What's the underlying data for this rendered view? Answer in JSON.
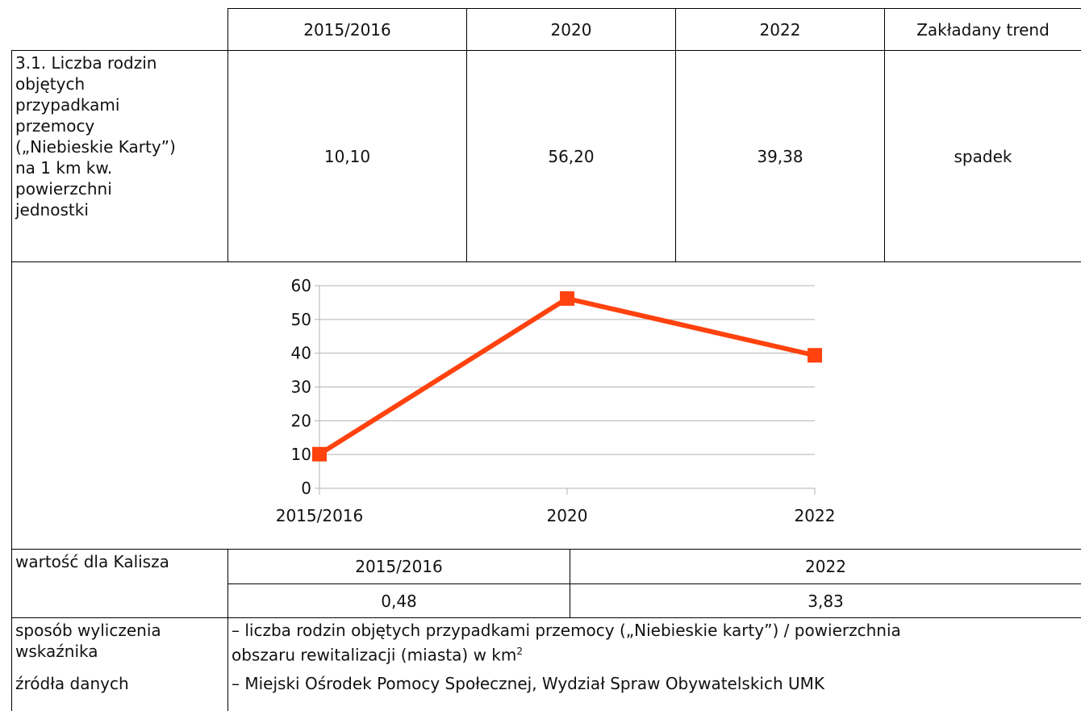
{
  "table": {
    "header": [
      "2015/2016",
      "2020",
      "2022",
      "Zakładany trend"
    ],
    "indicator": {
      "label": [
        "3.1. Liczba rodzin",
        "objętych",
        "przypadkami",
        "przemocy",
        "(„Niebieskie Karty”)",
        "na 1 km kw.",
        "powierzchni",
        "jednostki"
      ],
      "values": [
        "10,10",
        "56,20",
        "39,38",
        "spadek"
      ]
    }
  },
  "chart_data": {
    "type": "line",
    "categories": [
      "2015/2016",
      "2020",
      "2022"
    ],
    "values": [
      10.1,
      56.2,
      39.38
    ],
    "color": "#ff420e",
    "ylim": [
      0,
      60
    ],
    "yticks": [
      0,
      10,
      20,
      30,
      40,
      50,
      60
    ],
    "grid": true
  },
  "kalisz": {
    "label": "wartość dla Kalisza",
    "years": [
      "2015/2016",
      "2022"
    ],
    "values": [
      "0,48",
      "3,83"
    ]
  },
  "method": {
    "label": "sposób wyliczenia wskaźnika",
    "lines": [
      "– liczba rodzin objętych przypadkami przemocy („Niebieskie karty”) / powierzchnia",
      "obszaru rewitalizacji (miasta) w km"
    ],
    "sup": "2"
  },
  "sources": {
    "label": "źródła danych",
    "text": "– Miejski Ośrodek Pomocy Społecznej, Wydział Spraw Obywatelskich UMK"
  }
}
